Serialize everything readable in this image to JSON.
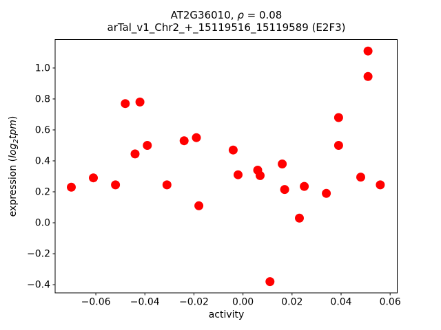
{
  "chart_data": {
    "type": "scatter",
    "title_line1": {
      "prefix": "AT2G36010, ",
      "rho": "ρ",
      "suffix": " = 0.08"
    },
    "title_line2": "arTal_v1_Chr2_+_15119516_15119589 (E2F3)",
    "xlabel": "activity",
    "ylabel": {
      "prefix": "expression (",
      "math_word": "log",
      "math_sub": "2",
      "math_word2": "tpm",
      "suffix": ")"
    },
    "xlim": [
      -0.0766,
      0.0629
    ],
    "ylim": [
      -0.453,
      1.184
    ],
    "x_ticks": [
      -0.06,
      -0.04,
      -0.02,
      0.0,
      0.02,
      0.04,
      0.06
    ],
    "x_tick_labels": [
      "−0.06",
      "−0.04",
      "−0.02",
      "0.00",
      "0.02",
      "0.04",
      "0.06"
    ],
    "y_ticks": [
      1.0,
      0.8,
      0.6,
      0.4,
      0.2,
      0.0,
      -0.2,
      -0.4
    ],
    "y_tick_labels": [
      "1.0",
      "0.8",
      "0.6",
      "0.4",
      "0.2",
      "0.0",
      "−0.2",
      "−0.4"
    ],
    "grid": false,
    "legend": null,
    "marker_color": "#ff0000",
    "axis_color": "#000000",
    "points": [
      [
        -0.07,
        0.23
      ],
      [
        -0.061,
        0.29
      ],
      [
        -0.052,
        0.245
      ],
      [
        -0.048,
        0.77
      ],
      [
        -0.042,
        0.78
      ],
      [
        -0.044,
        0.445
      ],
      [
        -0.039,
        0.5
      ],
      [
        -0.031,
        0.245
      ],
      [
        -0.024,
        0.53
      ],
      [
        -0.019,
        0.55
      ],
      [
        -0.018,
        0.11
      ],
      [
        -0.004,
        0.47
      ],
      [
        -0.002,
        0.31
      ],
      [
        0.006,
        0.34
      ],
      [
        0.007,
        0.305
      ],
      [
        0.011,
        -0.38
      ],
      [
        0.016,
        0.38
      ],
      [
        0.017,
        0.215
      ],
      [
        0.023,
        0.03
      ],
      [
        0.025,
        0.235
      ],
      [
        0.034,
        0.19
      ],
      [
        0.039,
        0.68
      ],
      [
        0.039,
        0.5
      ],
      [
        0.048,
        0.295
      ],
      [
        0.051,
        1.11
      ],
      [
        0.051,
        0.945
      ],
      [
        0.056,
        0.245
      ]
    ]
  }
}
